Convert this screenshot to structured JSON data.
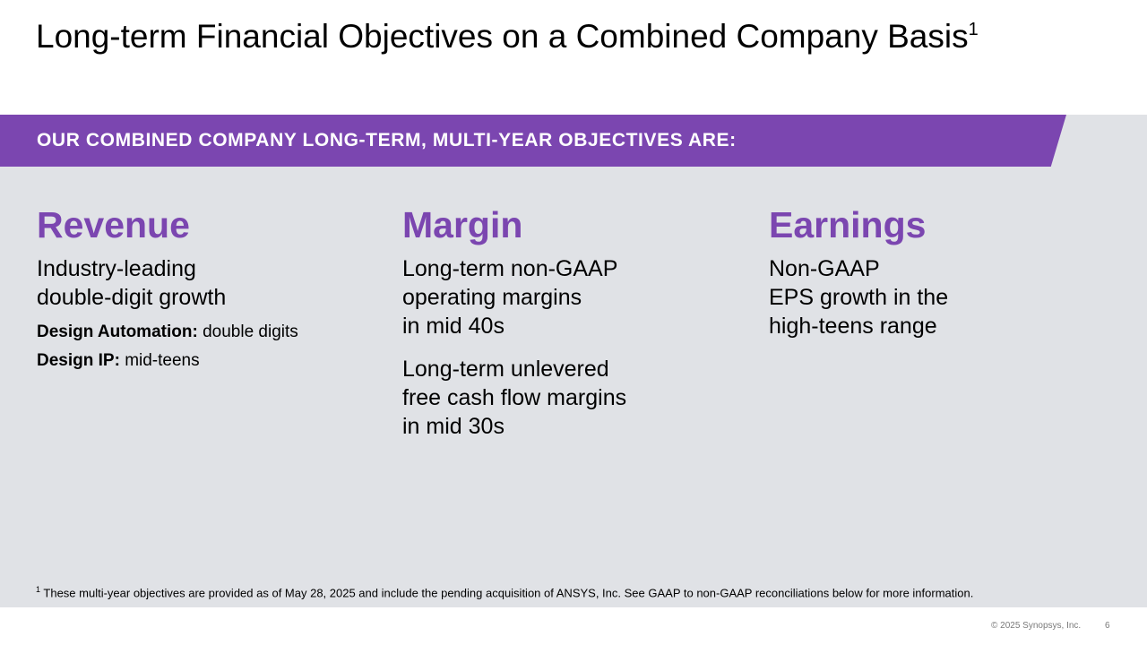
{
  "slide": {
    "title": "Long-term Financial Objectives on a Combined Company Basis",
    "title_superscript": "1",
    "banner": "OUR COMBINED COMPANY LONG-TERM, MULTI-YEAR OBJECTIVES ARE:"
  },
  "columns": [
    {
      "heading": "Revenue",
      "lines": [
        "Industry-leading",
        "double-digit growth"
      ],
      "details": [
        {
          "label": "Design Automation:",
          "value": "double digits"
        },
        {
          "label": "Design IP:",
          "value": "mid-teens"
        }
      ]
    },
    {
      "heading": "Margin",
      "block1": [
        "Long-term non-GAAP",
        "operating margins",
        "in mid 40s"
      ],
      "block2": [
        "Long-term unlevered",
        "free cash flow margins",
        "in mid 30s"
      ]
    },
    {
      "heading": "Earnings",
      "lines": [
        "Non-GAAP",
        "EPS growth in the",
        "high-teens range"
      ]
    }
  ],
  "footer": {
    "footnote_mark": "1",
    "footnote": "These multi-year objectives are provided as of May 28, 2025 and include the pending acquisition of ANSYS, Inc. See GAAP to non-GAAP reconciliations below for more information.",
    "copyright": "© 2025 Synopsys, Inc.",
    "page_number": "6"
  },
  "colors": {
    "accent": "#7b46b0",
    "panel_bg": "#e0e2e6",
    "banner_text": "#ffffff"
  }
}
